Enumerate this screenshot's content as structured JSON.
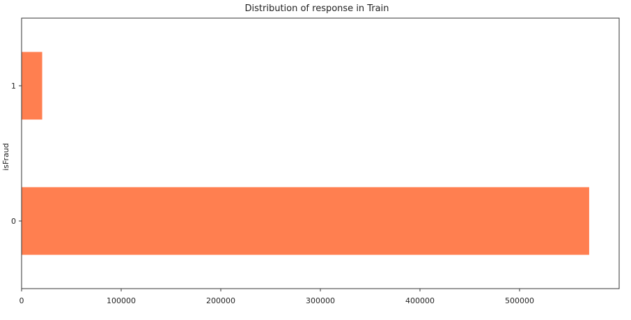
{
  "chart_data": {
    "type": "bar",
    "orientation": "horizontal",
    "title": "Distribution of response in Train",
    "xlabel": "",
    "ylabel": "isFraud",
    "categories": [
      "0",
      "1"
    ],
    "values": [
      569877,
      20663
    ],
    "xlim": [
      0,
      600000
    ],
    "xticks": [
      0,
      100000,
      200000,
      300000,
      400000,
      500000
    ],
    "xtick_labels": [
      "0",
      "100000",
      "200000",
      "300000",
      "400000",
      "500000"
    ],
    "grid": false,
    "legend": "none",
    "bar_color": "#ff7f50"
  }
}
